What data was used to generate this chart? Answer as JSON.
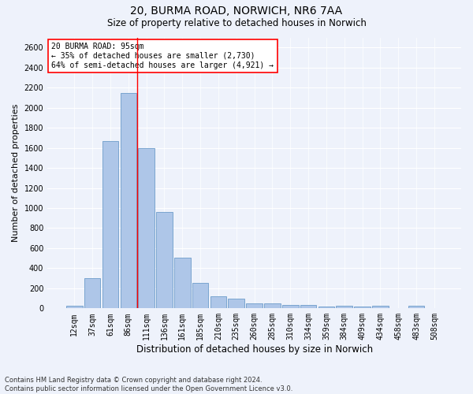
{
  "title_line1": "20, BURMA ROAD, NORWICH, NR6 7AA",
  "title_line2": "Size of property relative to detached houses in Norwich",
  "xlabel": "Distribution of detached houses by size in Norwich",
  "ylabel": "Number of detached properties",
  "footer_line1": "Contains HM Land Registry data © Crown copyright and database right 2024.",
  "footer_line2": "Contains public sector information licensed under the Open Government Licence v3.0.",
  "annotation_title": "20 BURMA ROAD: 95sqm",
  "annotation_line1": "← 35% of detached houses are smaller (2,730)",
  "annotation_line2": "64% of semi-detached houses are larger (4,921) →",
  "bar_labels": [
    "12sqm",
    "37sqm",
    "61sqm",
    "86sqm",
    "111sqm",
    "136sqm",
    "161sqm",
    "185sqm",
    "210sqm",
    "235sqm",
    "260sqm",
    "285sqm",
    "310sqm",
    "334sqm",
    "359sqm",
    "384sqm",
    "409sqm",
    "434sqm",
    "458sqm",
    "483sqm",
    "508sqm"
  ],
  "bar_values": [
    25,
    300,
    1670,
    2150,
    1595,
    960,
    505,
    250,
    120,
    100,
    50,
    50,
    35,
    35,
    20,
    30,
    20,
    30,
    5,
    25,
    0
  ],
  "bar_color": "#aec6e8",
  "bar_edge_color": "#5a8fc2",
  "vline_x": 3.5,
  "vline_color": "red",
  "ylim": [
    0,
    2700
  ],
  "yticks": [
    0,
    200,
    400,
    600,
    800,
    1000,
    1200,
    1400,
    1600,
    1800,
    2000,
    2200,
    2400,
    2600
  ],
  "annotation_box_color": "white",
  "annotation_box_edge": "red",
  "bg_color": "#eef2fb",
  "grid_color": "white",
  "title1_fontsize": 10,
  "title2_fontsize": 8.5,
  "ylabel_fontsize": 8,
  "xlabel_fontsize": 8.5,
  "tick_fontsize": 7,
  "annot_fontsize": 7,
  "footer_fontsize": 6
}
